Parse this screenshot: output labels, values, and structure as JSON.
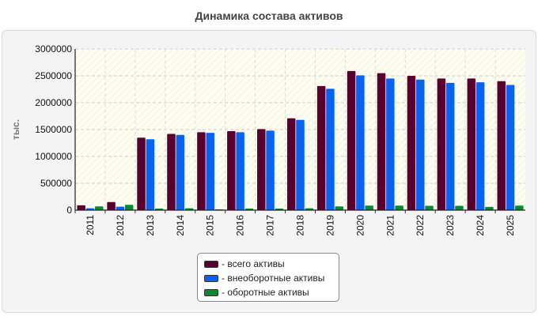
{
  "title": "Динамика состава активов",
  "chart_data": {
    "type": "bar",
    "title": "Динамика состава активов",
    "ylabel": "тыс.",
    "xlabel": "",
    "ylim": [
      0,
      3000000
    ],
    "yticks": [
      "0",
      "500000",
      "1000000",
      "1500000",
      "2000000",
      "2500000",
      "3000000"
    ],
    "grid": true,
    "legend_position": "bottom",
    "categories": [
      "2011",
      "2012",
      "2013",
      "2014",
      "2015",
      "2016",
      "2017",
      "2018",
      "2019",
      "2020",
      "2021",
      "2022",
      "2023",
      "2024",
      "2025"
    ],
    "series": [
      {
        "name": "всего активы",
        "label": "- всего активы",
        "color": "#5a0030",
        "values": [
          90000,
          150000,
          1350000,
          1420000,
          1450000,
          1470000,
          1510000,
          1710000,
          2310000,
          2590000,
          2550000,
          2500000,
          2450000,
          2450000,
          2400000
        ]
      },
      {
        "name": "внеоборотные активы",
        "label": "- внеоборотные активы",
        "color": "#0a63f0",
        "values": [
          35000,
          65000,
          1320000,
          1400000,
          1440000,
          1450000,
          1480000,
          1680000,
          2260000,
          2510000,
          2450000,
          2430000,
          2370000,
          2380000,
          2330000
        ]
      },
      {
        "name": "оборотные активы",
        "label": "- оборотные активы",
        "color": "#0a8a30",
        "values": [
          70000,
          100000,
          30000,
          35000,
          15000,
          30000,
          30000,
          35000,
          70000,
          85000,
          85000,
          80000,
          80000,
          60000,
          85000
        ]
      }
    ]
  }
}
